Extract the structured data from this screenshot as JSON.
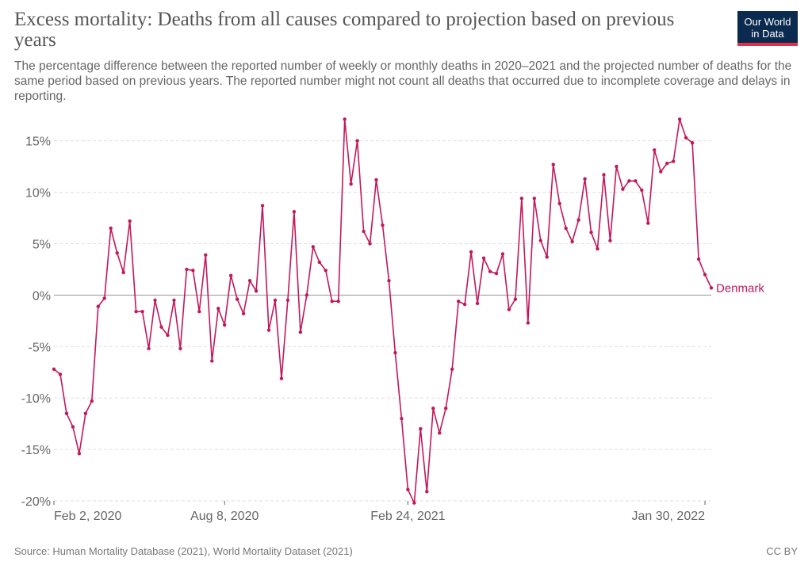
{
  "header": {
    "title": "Excess mortality: Deaths from all causes compared to projection based on previous years",
    "subtitle": "The percentage difference between the reported number of weekly or monthly deaths in 2020–2021 and the projected number of deaths for the same period based on previous years. The reported number might not count all deaths that occurred due to incomplete coverage and delays in reporting.",
    "logo_line1": "Our World",
    "logo_line2": "in Data"
  },
  "footer": {
    "source": "Source: Human Mortality Database (2021), World Mortality Dataset (2021)",
    "license": "CC BY"
  },
  "colors": {
    "series": "#c2185b",
    "grid": "#dddddd",
    "zero_line": "#999999",
    "axis_text": "#666666"
  },
  "chart_data": {
    "type": "line",
    "title": "Excess mortality: Deaths from all causes compared to projection based on previous years",
    "xlabel": "",
    "ylabel": "",
    "ylim": [
      -20,
      17
    ],
    "yticks": [
      15,
      10,
      5,
      0,
      -5,
      -10,
      -15,
      -20
    ],
    "ytick_labels": [
      "15%",
      "10%",
      "5%",
      "0%",
      "-5%",
      "-10%",
      "-15%",
      "-20%"
    ],
    "xtick_labels": [
      "Feb 2, 2020",
      "Aug 8, 2020",
      "Feb 24, 2021",
      "Jan 30, 2022"
    ],
    "xtick_indices": [
      0,
      27,
      56,
      103
    ],
    "grid": true,
    "series": [
      {
        "name": "Denmark",
        "values": [
          -7.2,
          -7.7,
          -11.5,
          -12.8,
          -15.4,
          -11.5,
          -10.3,
          -1.1,
          -0.3,
          6.5,
          4.1,
          2.2,
          7.2,
          -1.6,
          -1.6,
          -5.2,
          -0.5,
          -3.1,
          -3.9,
          -0.5,
          -5.2,
          2.5,
          2.4,
          -1.6,
          3.9,
          -6.4,
          -1.3,
          -2.9,
          1.9,
          -0.4,
          -1.8,
          1.4,
          0.4,
          8.7,
          -3.4,
          -0.5,
          -8.1,
          -0.5,
          8.1,
          -3.6,
          0.0,
          4.7,
          3.2,
          2.4,
          -0.6,
          -0.6,
          17.1,
          10.8,
          15.0,
          6.2,
          5.0,
          11.2,
          6.8,
          1.4,
          -5.6,
          -12.0,
          -18.9,
          -20.2,
          -13.0,
          -19.1,
          -11.0,
          -13.4,
          -11.0,
          -7.2,
          -0.6,
          -0.9,
          4.2,
          -0.8,
          3.6,
          2.3,
          2.1,
          4.0,
          -1.4,
          -0.4,
          9.4,
          -2.7,
          9.4,
          5.3,
          3.7,
          12.7,
          8.9,
          6.5,
          5.2,
          7.3,
          11.3,
          6.1,
          4.5,
          11.7,
          5.3,
          12.5,
          10.3,
          11.1,
          11.1,
          10.2,
          7.0,
          14.1,
          12.0,
          12.8,
          13.0,
          17.1,
          15.3,
          14.8,
          3.5,
          2.0,
          0.7
        ]
      }
    ]
  }
}
